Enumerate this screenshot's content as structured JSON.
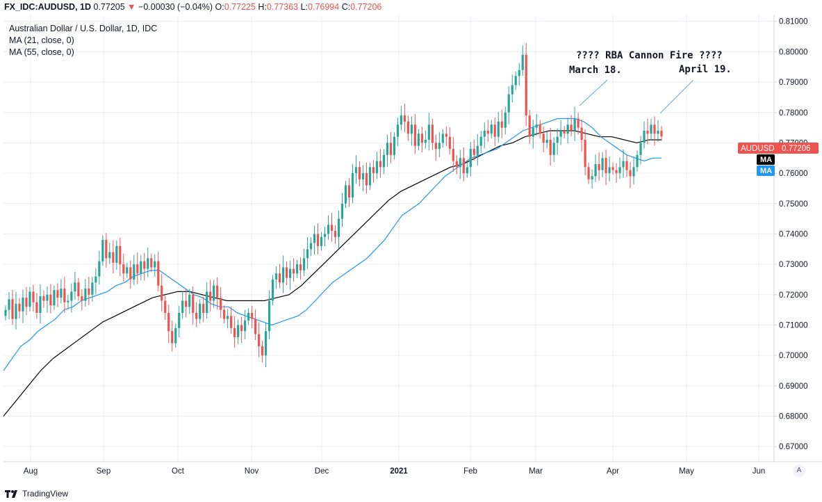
{
  "header": {
    "symbol": "FX_IDC:AUDUSD, 1D",
    "last": "0.77205",
    "arrow": "▼",
    "change": "−0.00030 (−0.04%)",
    "o_label": "O:",
    "o_value": "0.77225",
    "h_label": "H:",
    "h_value": "0.77363",
    "l_label": "L:",
    "l_value": "0.76994",
    "c_label": "C:",
    "c_value": "0.77206"
  },
  "legend": {
    "title": "Australian Dollar / U.S. Dollar, 1D, IDC",
    "ma1": "MA (21, close, 0)",
    "ma2": "MA (55, close, 0)"
  },
  "annotations": {
    "headline": "???? RBA Cannon Fire ????",
    "march": "March 18.",
    "april": "April 19."
  },
  "badges": {
    "price_symbol": "AUDUSD",
    "price_value": "0.77206",
    "ma_black": "MA",
    "ma_blue": "MA"
  },
  "footer": {
    "brand": "TradingView"
  },
  "scale_button": "A",
  "colors": {
    "up": "#26a69a",
    "down": "#ef5350",
    "ma21": "#2196f3",
    "ma55": "#000000",
    "grid": "#e9edf3"
  },
  "chart_data": {
    "type": "candlestick",
    "title": "Australian Dollar / U.S. Dollar, 1D, IDC",
    "ylim": [
      0.665,
      0.812
    ],
    "y_ticks": [
      "0.81000",
      "0.80000",
      "0.79000",
      "0.78000",
      "0.77000",
      "0.76000",
      "0.75000",
      "0.74000",
      "0.73000",
      "0.72000",
      "0.71000",
      "0.70000",
      "0.69000",
      "0.68000",
      "0.67000"
    ],
    "x_ticks": [
      "Aug",
      "Sep",
      "Oct",
      "Nov",
      "Dec",
      "2021",
      "Feb",
      "Mar",
      "Apr",
      "May",
      "Jun"
    ],
    "x_range_days": [
      -25,
      1065
    ],
    "grid": true,
    "last_close": 0.77206,
    "closes": [
      0.715,
      0.7185,
      0.712,
      0.717,
      0.7145,
      0.719,
      0.716,
      0.721,
      0.7175,
      0.714,
      0.7195,
      0.718,
      0.72,
      0.7165,
      0.7215,
      0.719,
      0.722,
      0.7175,
      0.718,
      0.721,
      0.724,
      0.7195,
      0.718,
      0.722,
      0.72,
      0.724,
      0.726,
      0.731,
      0.738,
      0.732,
      0.734,
      0.7305,
      0.736,
      0.73,
      0.727,
      0.729,
      0.725,
      0.73,
      0.727,
      0.731,
      0.7285,
      0.732,
      0.729,
      0.731,
      0.723,
      0.718,
      0.714,
      0.708,
      0.704,
      0.709,
      0.714,
      0.718,
      0.716,
      0.72,
      0.714,
      0.712,
      0.717,
      0.714,
      0.721,
      0.718,
      0.723,
      0.719,
      0.715,
      0.712,
      0.713,
      0.709,
      0.706,
      0.71,
      0.708,
      0.7115,
      0.714,
      0.712,
      0.707,
      0.703,
      0.7,
      0.708,
      0.718,
      0.725,
      0.727,
      0.724,
      0.729,
      0.7255,
      0.7285,
      0.727,
      0.73,
      0.728,
      0.732,
      0.735,
      0.737,
      0.74,
      0.736,
      0.739,
      0.74,
      0.743,
      0.741,
      0.739,
      0.745,
      0.75,
      0.756,
      0.752,
      0.76,
      0.762,
      0.758,
      0.76,
      0.756,
      0.762,
      0.76,
      0.764,
      0.762,
      0.766,
      0.77,
      0.766,
      0.772,
      0.776,
      0.779,
      0.777,
      0.773,
      0.776,
      0.769,
      0.773,
      0.77,
      0.771,
      0.776,
      0.77,
      0.768,
      0.77,
      0.773,
      0.772,
      0.768,
      0.764,
      0.762,
      0.765,
      0.76,
      0.762,
      0.768,
      0.766,
      0.769,
      0.772,
      0.774,
      0.773,
      0.776,
      0.772,
      0.777,
      0.775,
      0.78,
      0.786,
      0.789,
      0.792,
      0.794,
      0.799,
      0.779,
      0.772,
      0.775,
      0.776,
      0.773,
      0.77,
      0.771,
      0.766,
      0.77,
      0.772,
      0.774,
      0.773,
      0.776,
      0.774,
      0.778,
      0.775,
      0.771,
      0.762,
      0.758,
      0.759,
      0.763,
      0.761,
      0.765,
      0.76,
      0.762,
      0.761,
      0.76,
      0.762,
      0.764,
      0.761,
      0.759,
      0.762,
      0.766,
      0.77,
      0.774,
      0.773,
      0.776,
      0.773,
      0.774,
      0.7721
    ],
    "series": [
      {
        "name": "MA (21, close, 0)",
        "values": [
          0.695,
          0.699,
          0.703,
          0.705,
          0.708,
          0.71,
          0.712,
          0.715,
          0.716,
          0.718,
          0.719,
          0.72,
          0.721,
          0.723,
          0.724,
          0.726,
          0.727,
          0.728,
          0.728,
          0.726,
          0.724,
          0.722,
          0.72,
          0.719,
          0.717,
          0.716,
          0.716,
          0.714,
          0.713,
          0.712,
          0.711,
          0.71,
          0.711,
          0.712,
          0.713,
          0.715,
          0.718,
          0.721,
          0.724,
          0.726,
          0.728,
          0.73,
          0.732,
          0.735,
          0.738,
          0.742,
          0.746,
          0.748,
          0.75,
          0.753,
          0.756,
          0.759,
          0.761,
          0.763,
          0.765,
          0.766,
          0.767,
          0.768,
          0.77,
          0.772,
          0.774,
          0.775,
          0.776,
          0.777,
          0.778,
          0.778,
          0.778,
          0.777,
          0.775,
          0.772,
          0.77,
          0.768,
          0.766,
          0.765,
          0.764,
          0.765,
          0.765
        ]
      },
      {
        "name": "MA (55, close, 0)",
        "values": [
          0.68,
          0.685,
          0.69,
          0.695,
          0.699,
          0.702,
          0.705,
          0.708,
          0.711,
          0.713,
          0.715,
          0.717,
          0.719,
          0.72,
          0.721,
          0.721,
          0.72,
          0.719,
          0.718,
          0.718,
          0.718,
          0.718,
          0.719,
          0.72,
          0.723,
          0.727,
          0.731,
          0.735,
          0.739,
          0.743,
          0.747,
          0.751,
          0.754,
          0.756,
          0.758,
          0.76,
          0.762,
          0.763,
          0.765,
          0.767,
          0.769,
          0.77,
          0.772,
          0.773,
          0.774,
          0.774,
          0.774,
          0.773,
          0.772,
          0.772,
          0.771,
          0.77,
          0.771,
          0.771
        ]
      }
    ]
  }
}
